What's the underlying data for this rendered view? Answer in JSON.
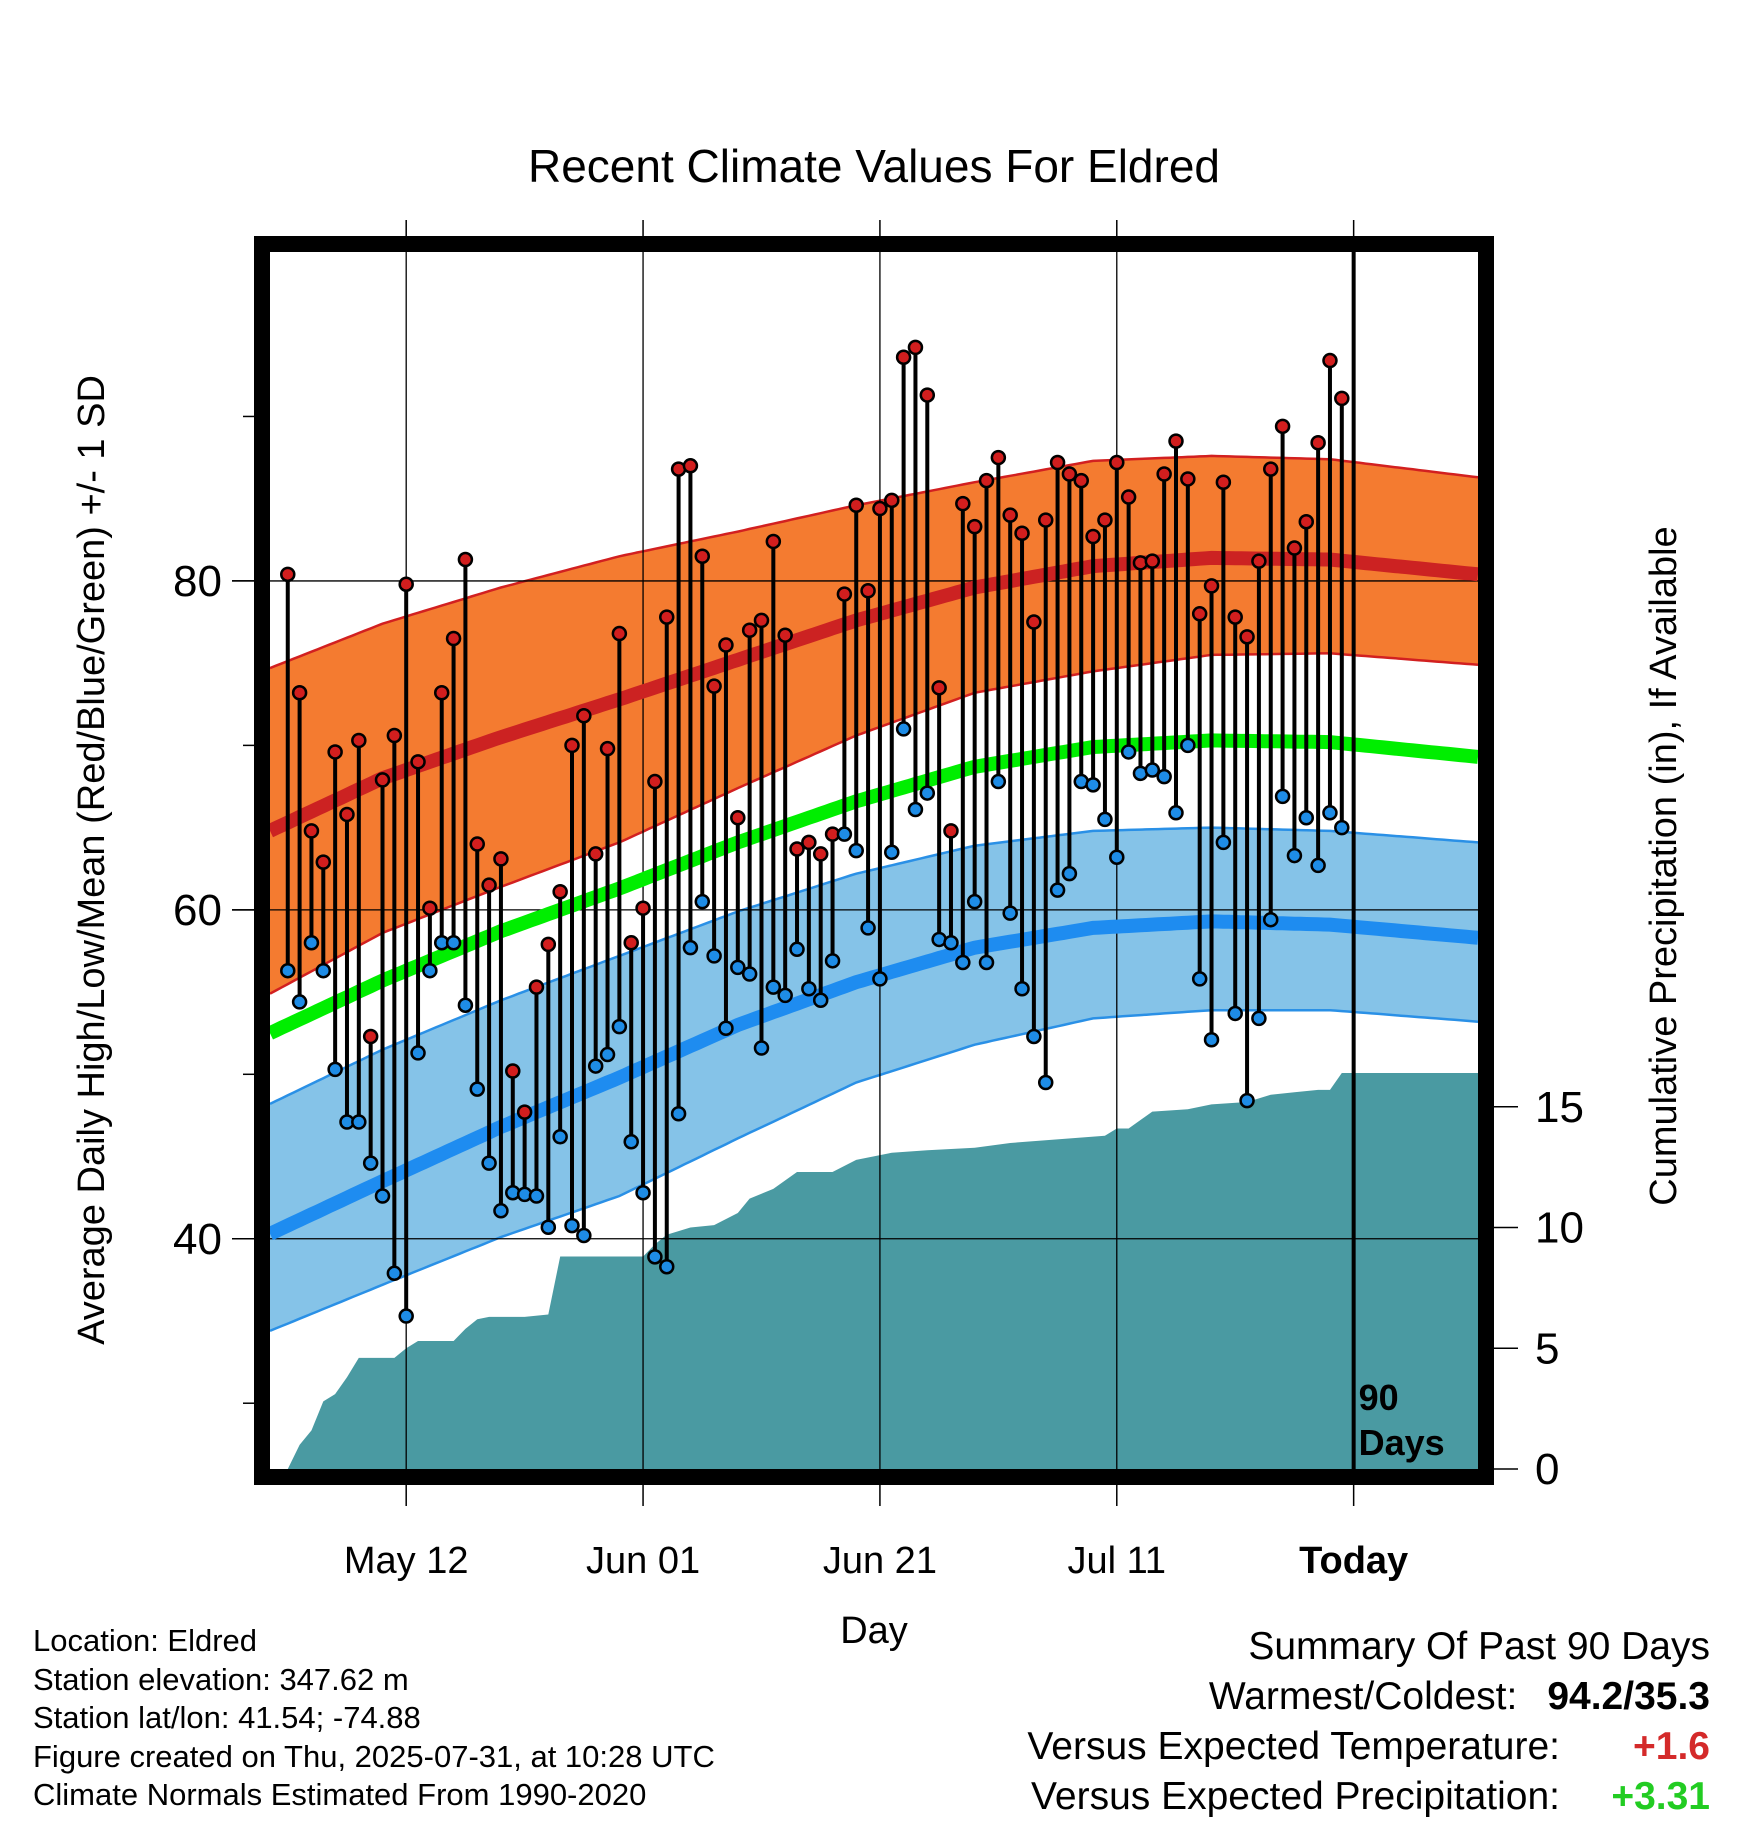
{
  "chart_data": {
    "type": "line",
    "title": "Recent Climate Values For Eldred",
    "xlabel": "Day",
    "ylabel": "Average Daily High/Low/Mean (Red/Blue/Green) +/- 1 SD",
    "ylabel_right": "Cumulative Precipitation (in), If Available",
    "x_tick_labels": [
      "May 12",
      "Jun 01",
      "Jun 21",
      "Jul 11",
      "Today"
    ],
    "x_tick_days": [
      12,
      32,
      52,
      72,
      92
    ],
    "xlim": [
      0.5,
      102.5
    ],
    "y_left_ticks": [
      40,
      60,
      80
    ],
    "ylim_left": [
      26,
      100
    ],
    "y_right_ticks": [
      0,
      5,
      10,
      15
    ],
    "ylim_right": [
      0,
      50.4
    ],
    "grid": true,
    "today_marker": {
      "label_line1": "90",
      "label_line2": "Days",
      "day": 92
    },
    "day_start": 2,
    "series": [
      {
        "name": "Daily High",
        "color": "#d21e1e",
        "values": [
          80.4,
          73.2,
          64.8,
          62.9,
          69.6,
          65.8,
          70.3,
          52.3,
          67.9,
          70.6,
          79.8,
          69.0,
          60.1,
          73.2,
          76.5,
          81.3,
          64.0,
          61.5,
          63.1,
          50.2,
          47.7,
          55.3,
          57.9,
          61.1,
          70.0,
          71.8,
          63.4,
          69.8,
          76.8,
          58.0,
          60.1,
          67.8,
          77.8,
          86.8,
          87.0,
          81.5,
          73.6,
          76.1,
          65.6,
          77.0,
          77.6,
          82.4,
          76.7,
          63.7,
          64.1,
          63.4,
          64.6,
          79.2,
          84.6,
          79.4,
          84.4,
          84.9,
          93.6,
          94.2,
          91.3,
          73.5,
          64.8,
          84.7,
          83.3,
          86.1,
          87.5,
          84.0,
          82.9,
          77.5,
          83.7,
          87.2,
          86.5,
          86.1,
          82.7,
          83.7,
          87.2,
          85.1,
          81.1,
          81.2,
          86.5,
          88.5,
          86.2,
          78.0,
          79.7,
          86.0,
          77.8,
          76.6,
          81.2,
          86.8,
          89.4,
          82.0,
          83.6,
          88.4,
          93.4,
          91.1
        ]
      },
      {
        "name": "Daily Low",
        "color": "#1e8ce6",
        "values": [
          56.3,
          54.4,
          58.0,
          56.3,
          50.3,
          47.1,
          47.1,
          44.6,
          42.6,
          37.9,
          35.3,
          51.3,
          56.3,
          58.0,
          58.0,
          54.2,
          49.1,
          44.6,
          41.7,
          42.8,
          42.7,
          42.6,
          40.7,
          46.2,
          40.8,
          40.2,
          50.5,
          51.2,
          52.9,
          45.9,
          42.8,
          38.9,
          38.3,
          47.6,
          57.7,
          60.5,
          57.2,
          52.8,
          56.5,
          56.1,
          51.6,
          55.3,
          54.8,
          57.6,
          55.2,
          54.5,
          56.9,
          64.6,
          63.6,
          58.9,
          55.8,
          63.5,
          71.0,
          66.1,
          67.1,
          58.2,
          58.0,
          56.8,
          60.5,
          56.8,
          67.8,
          59.8,
          55.2,
          52.3,
          49.5,
          61.2,
          62.2,
          67.8,
          67.6,
          65.5,
          63.2,
          69.6,
          68.3,
          68.5,
          68.1,
          65.9,
          70.0,
          55.8,
          52.1,
          64.1,
          53.7,
          48.4,
          53.4,
          59.4,
          66.9,
          63.3,
          65.6,
          62.7,
          65.9,
          65.0
        ]
      },
      {
        "name": "Normal High",
        "color": "#cc2222",
        "points": [
          [
            0.5,
            64.8
          ],
          [
            10,
            68.0
          ],
          [
            20,
            70.5
          ],
          [
            30,
            72.8
          ],
          [
            40,
            75.2
          ],
          [
            50,
            77.6
          ],
          [
            60,
            79.6
          ],
          [
            70,
            80.9
          ],
          [
            80,
            81.4
          ],
          [
            90,
            81.3
          ],
          [
            102.5,
            80.4
          ]
        ]
      },
      {
        "name": "Normal High +1 SD",
        "color": "#d22020",
        "points": [
          [
            0.5,
            74.7
          ],
          [
            10,
            77.4
          ],
          [
            20,
            79.6
          ],
          [
            30,
            81.5
          ],
          [
            40,
            83.0
          ],
          [
            50,
            84.6
          ],
          [
            60,
            86.0
          ],
          [
            70,
            87.3
          ],
          [
            80,
            87.6
          ],
          [
            90,
            87.4
          ],
          [
            102.5,
            86.3
          ]
        ]
      },
      {
        "name": "Normal High -1 SD",
        "color": "#d22020",
        "points": [
          [
            0.5,
            54.9
          ],
          [
            10,
            58.6
          ],
          [
            20,
            61.4
          ],
          [
            30,
            64.1
          ],
          [
            40,
            67.4
          ],
          [
            50,
            70.6
          ],
          [
            60,
            73.2
          ],
          [
            70,
            74.5
          ],
          [
            80,
            75.5
          ],
          [
            90,
            75.6
          ],
          [
            102.5,
            74.9
          ]
        ]
      },
      {
        "name": "Normal Low",
        "color": "#1e8cf0",
        "points": [
          [
            0.5,
            40.3
          ],
          [
            10,
            43.5
          ],
          [
            20,
            46.8
          ],
          [
            30,
            49.8
          ],
          [
            40,
            53.0
          ],
          [
            50,
            55.6
          ],
          [
            60,
            57.7
          ],
          [
            70,
            58.9
          ],
          [
            80,
            59.3
          ],
          [
            90,
            59.1
          ],
          [
            102.5,
            58.3
          ]
        ]
      },
      {
        "name": "Normal Low +1 SD",
        "color": "#2a90e6",
        "points": [
          [
            0.5,
            48.2
          ],
          [
            10,
            51.5
          ],
          [
            20,
            54.5
          ],
          [
            30,
            57.2
          ],
          [
            40,
            59.9
          ],
          [
            50,
            62.2
          ],
          [
            60,
            63.9
          ],
          [
            70,
            64.8
          ],
          [
            80,
            65.0
          ],
          [
            90,
            64.8
          ],
          [
            102.5,
            64.1
          ]
        ]
      },
      {
        "name": "Normal Low -1 SD",
        "color": "#2a90e6",
        "points": [
          [
            0.5,
            34.4
          ],
          [
            10,
            37.2
          ],
          [
            20,
            40.1
          ],
          [
            30,
            42.6
          ],
          [
            40,
            46.1
          ],
          [
            50,
            49.5
          ],
          [
            60,
            51.8
          ],
          [
            70,
            53.4
          ],
          [
            80,
            53.9
          ],
          [
            90,
            53.9
          ],
          [
            102.5,
            53.2
          ]
        ]
      },
      {
        "name": "Normal Mean",
        "color": "#00ee00",
        "points": [
          [
            0.5,
            52.5
          ],
          [
            10,
            55.7
          ],
          [
            20,
            58.7
          ],
          [
            30,
            61.3
          ],
          [
            40,
            64.1
          ],
          [
            50,
            66.6
          ],
          [
            60,
            68.7
          ],
          [
            70,
            69.9
          ],
          [
            80,
            70.3
          ],
          [
            90,
            70.2
          ],
          [
            102.5,
            69.3
          ]
        ]
      },
      {
        "name": "Cumulative Precipitation",
        "color": "#4a9aa2",
        "points": [
          [
            2,
            0
          ],
          [
            3,
            1.0
          ],
          [
            4,
            1.6
          ],
          [
            5,
            2.8
          ],
          [
            6,
            3.1
          ],
          [
            7,
            3.8
          ],
          [
            8,
            4.6
          ],
          [
            11,
            4.6
          ],
          [
            12,
            5.0
          ],
          [
            13,
            5.3
          ],
          [
            16,
            5.3
          ],
          [
            17,
            5.8
          ],
          [
            18,
            6.2
          ],
          [
            19,
            6.3
          ],
          [
            22,
            6.3
          ],
          [
            24,
            6.4
          ],
          [
            25,
            8.8
          ],
          [
            32,
            8.8
          ],
          [
            33,
            9.3
          ],
          [
            34,
            9.7
          ],
          [
            36,
            10.0
          ],
          [
            38,
            10.1
          ],
          [
            40,
            10.6
          ],
          [
            41,
            11.2
          ],
          [
            43,
            11.6
          ],
          [
            45,
            12.3
          ],
          [
            48,
            12.3
          ],
          [
            50,
            12.8
          ],
          [
            53,
            13.1
          ],
          [
            56,
            13.2
          ],
          [
            60,
            13.3
          ],
          [
            63,
            13.5
          ],
          [
            71,
            13.8
          ],
          [
            72,
            14.1
          ],
          [
            73,
            14.1
          ],
          [
            75,
            14.8
          ],
          [
            78,
            14.9
          ],
          [
            80,
            15.1
          ],
          [
            83,
            15.2
          ],
          [
            85,
            15.5
          ],
          [
            87,
            15.6
          ],
          [
            89,
            15.7
          ],
          [
            90,
            15.7
          ],
          [
            91,
            16.4
          ],
          [
            102.5,
            16.4
          ]
        ]
      }
    ]
  },
  "info": {
    "location": "Location: Eldred",
    "elevation": "Station elevation: 347.62 m",
    "latlon": "Station lat/lon: 41.54; -74.88",
    "created": "Figure created on Thu, 2025-07-31, at 10:28 UTC",
    "normals": "Climate Normals Estimated From 1990-2020"
  },
  "summary": {
    "title": "Summary Of Past 90 Days",
    "warmest_coldest_label": "Warmest/Coldest:",
    "warmest_coldest_value": "94.2/35.3",
    "temp_label": "Versus Expected Temperature:",
    "temp_value": "+1.6",
    "temp_color": "#d42a2a",
    "precip_label": "Versus Expected Precipitation:",
    "precip_value": "+3.31",
    "precip_color": "#22cc22"
  }
}
